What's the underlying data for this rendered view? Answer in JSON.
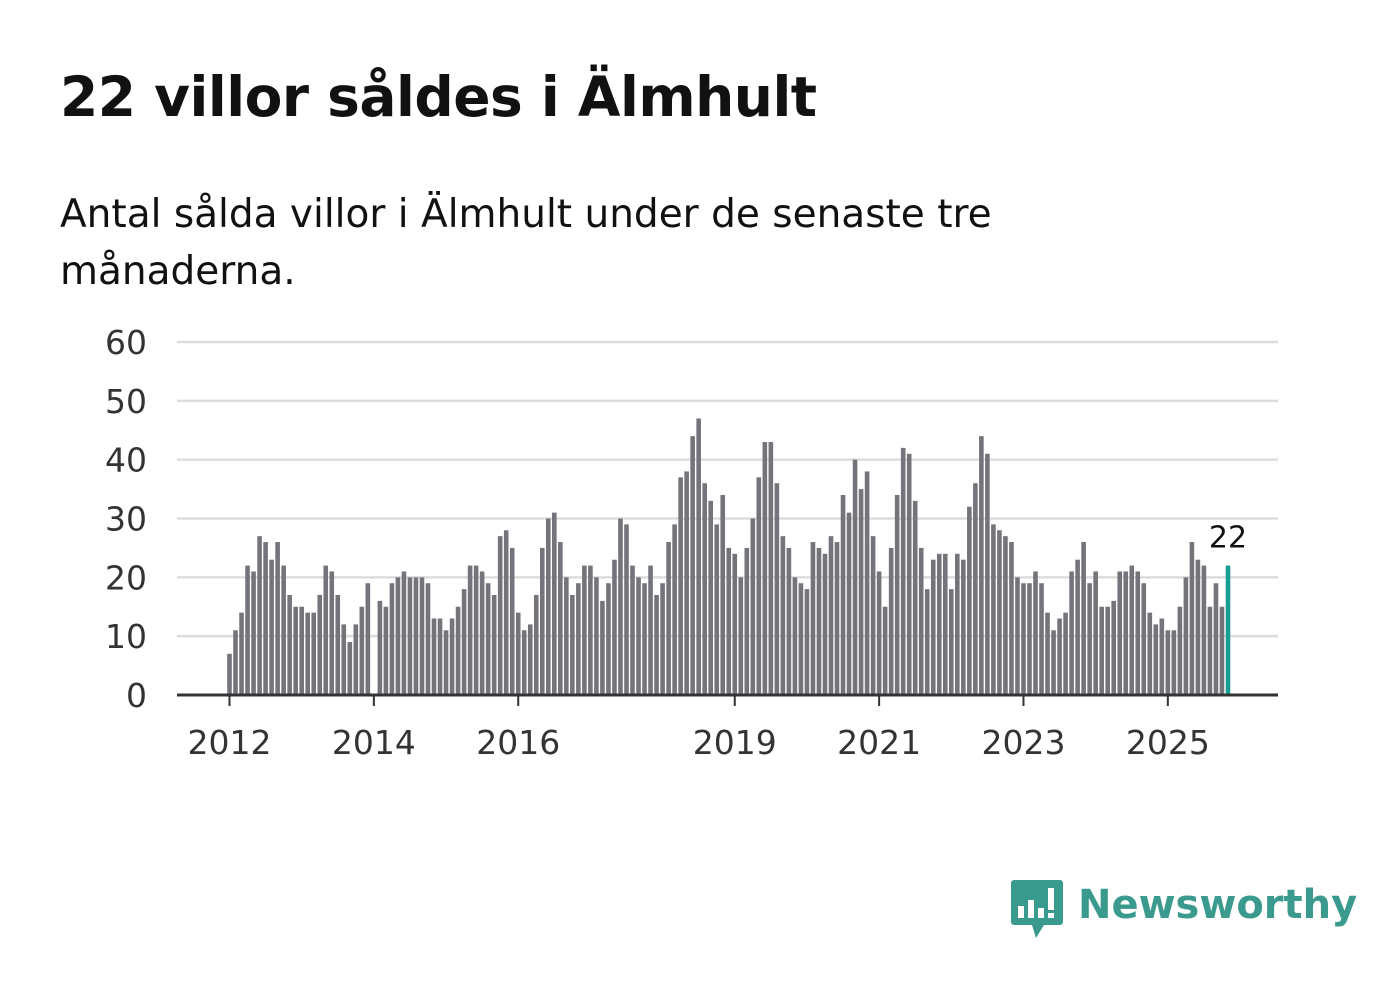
{
  "title": "22 villor såldes i Älmhult",
  "subtitle": "Antal sålda villor i Älmhult under de senaste tre månaderna.",
  "brand": {
    "name": "Newsworthy",
    "color": "#3a9a8e",
    "icon": "newsworthy-chart-bubble-icon"
  },
  "colors": {
    "bar": "#76747a",
    "highlight": "#1a9e91",
    "grid": "#dddddd",
    "axis": "#333333"
  },
  "chart_data": {
    "type": "bar",
    "title": "22 villor såldes i Älmhult",
    "subtitle": "Antal sålda villor i Älmhult under de senaste tre månaderna.",
    "xlabel": "",
    "ylabel": "",
    "ylim": [
      0,
      60
    ],
    "yticks": [
      0,
      10,
      20,
      30,
      40,
      50,
      60
    ],
    "grid": true,
    "legend": "none",
    "x_start": "2012-01",
    "x_end": "2025-11",
    "xticks": [
      {
        "label": "2012",
        "month": "2012-01"
      },
      {
        "label": "2014",
        "month": "2014-01"
      },
      {
        "label": "2016",
        "month": "2016-01"
      },
      {
        "label": "2019",
        "month": "2019-01"
      },
      {
        "label": "2021",
        "month": "2021-01"
      },
      {
        "label": "2023",
        "month": "2023-01"
      },
      {
        "label": "2025",
        "month": "2025-01"
      }
    ],
    "values": [
      7,
      11,
      14,
      22,
      21,
      27,
      26,
      23,
      26,
      22,
      17,
      15,
      15,
      14,
      14,
      17,
      22,
      21,
      17,
      12,
      9,
      12,
      15,
      19,
      null,
      16,
      15,
      19,
      20,
      21,
      20,
      20,
      20,
      19,
      13,
      13,
      11,
      13,
      15,
      18,
      22,
      22,
      21,
      19,
      17,
      27,
      28,
      25,
      14,
      11,
      12,
      17,
      25,
      30,
      31,
      26,
      20,
      17,
      19,
      22,
      22,
      20,
      16,
      19,
      23,
      30,
      29,
      22,
      20,
      19,
      22,
      17,
      19,
      26,
      29,
      37,
      38,
      44,
      47,
      36,
      33,
      29,
      34,
      25,
      24,
      20,
      25,
      30,
      37,
      43,
      43,
      36,
      27,
      25,
      20,
      19,
      18,
      26,
      25,
      24,
      27,
      26,
      34,
      31,
      40,
      35,
      38,
      27,
      21,
      15,
      25,
      34,
      42,
      41,
      33,
      25,
      18,
      23,
      24,
      24,
      18,
      24,
      23,
      32,
      36,
      44,
      41,
      29,
      28,
      27,
      26,
      20,
      19,
      19,
      21,
      19,
      14,
      11,
      13,
      14,
      21,
      23,
      26,
      19,
      21,
      15,
      15,
      16,
      21,
      21,
      22,
      21,
      19,
      14,
      12,
      13,
      11,
      11,
      15,
      20,
      26,
      23,
      22,
      15,
      19,
      15,
      22
    ],
    "highlight_index": 166,
    "highlight_label": "22"
  }
}
